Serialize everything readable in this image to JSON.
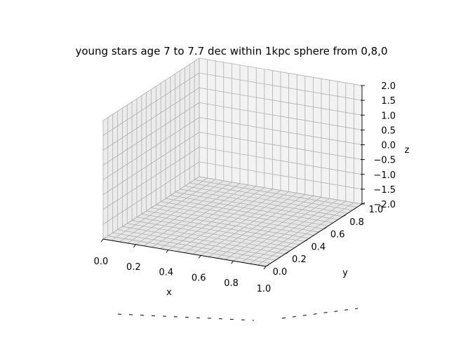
{
  "chart_data": {
    "type": "scatter",
    "projection": "3d",
    "title": "young stars age 7 to 7.7 dec within 1kpc sphere from 0,8,0",
    "xlabel": "x",
    "ylabel": "y",
    "zlabel": "z",
    "xlim": [
      0,
      1
    ],
    "ylim": [
      0,
      1
    ],
    "zlim": [
      -2,
      2
    ],
    "x_ticks": [
      "0.0",
      "0.2",
      "0.4",
      "0.6",
      "0.8",
      "1.0"
    ],
    "y_ticks": [
      "0.0",
      "0.2",
      "0.4",
      "0.6",
      "0.8",
      "1.0"
    ],
    "z_ticks": [
      "−2.0",
      "−1.5",
      "−1.0",
      "−0.5",
      "0.0",
      "0.5",
      "1.0",
      "1.5",
      "2.0"
    ],
    "grid": true,
    "points": []
  }
}
